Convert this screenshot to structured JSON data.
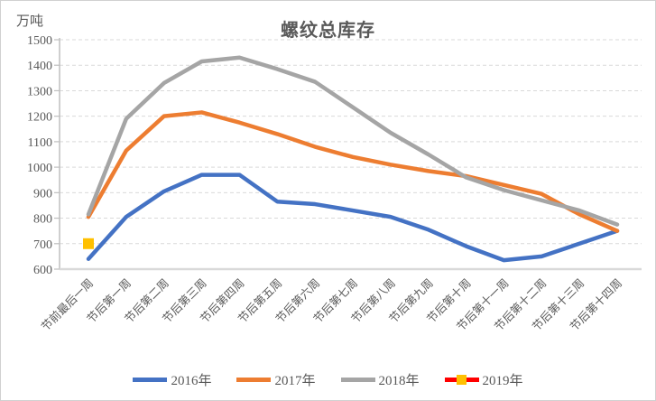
{
  "chart_data": {
    "type": "line",
    "title": "螺纹总库存",
    "ylabel": "万吨",
    "xlabel": "",
    "ylim": [
      600,
      1500
    ],
    "ytick_step": 100,
    "grid": true,
    "grid_style": "dashed",
    "legend_position": "bottom",
    "categories": [
      "节前最后一周",
      "节后第一周",
      "节后第二周",
      "节后第三周",
      "节后第四周",
      "节后第五周",
      "节后第六周",
      "节后第七周",
      "节后第八周",
      "节后第九周",
      "节后第十周",
      "节后第十一周",
      "节后第十二周",
      "节后第十三周",
      "节后第十四周"
    ],
    "series": [
      {
        "name": "2016年",
        "color": "#4472C4",
        "style": "line",
        "values": [
          640,
          805,
          905,
          970,
          970,
          865,
          855,
          830,
          805,
          755,
          690,
          635,
          650,
          700,
          750
        ]
      },
      {
        "name": "2017年",
        "color": "#ED7D31",
        "style": "line",
        "values": [
          805,
          1065,
          1200,
          1215,
          1175,
          1130,
          1080,
          1040,
          1010,
          985,
          965,
          930,
          895,
          815,
          750
        ]
      },
      {
        "name": "2018年",
        "color": "#A5A5A5",
        "style": "line",
        "values": [
          815,
          1190,
          1330,
          1415,
          1430,
          1385,
          1335,
          1235,
          1135,
          1050,
          960,
          910,
          870,
          830,
          775
        ]
      },
      {
        "name": "2019年",
        "color": "#FF0000",
        "style": "line-with-square-marker",
        "marker_color": "#FFC000",
        "values": [
          700,
          null,
          null,
          null,
          null,
          null,
          null,
          null,
          null,
          null,
          null,
          null,
          null,
          null,
          null
        ]
      }
    ]
  },
  "colors": {
    "text": "#595959",
    "gridline": "#D9D9D9",
    "y_axis": "#BFBFBF",
    "x_axis": "#D9D9D9"
  }
}
